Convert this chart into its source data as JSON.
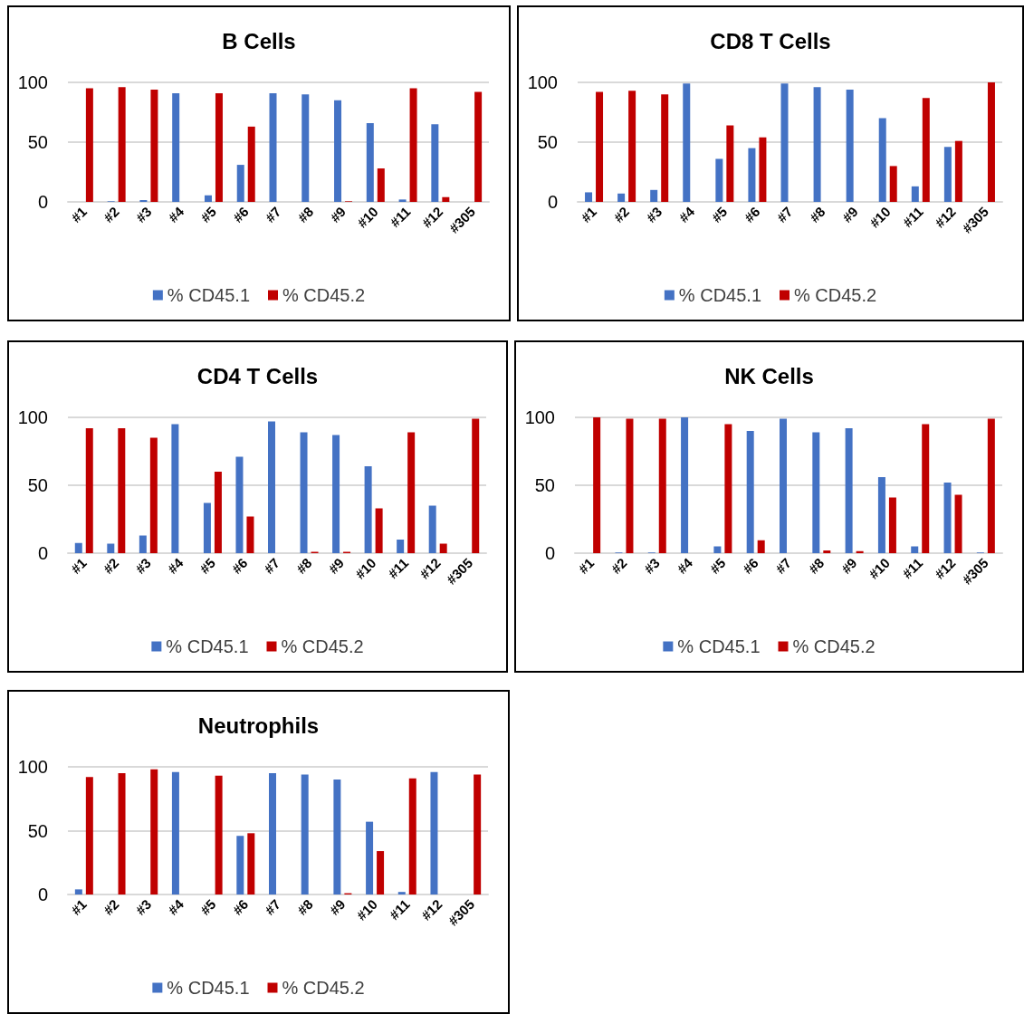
{
  "chart_data": [
    {
      "type": "bar",
      "title": "B Cells",
      "categories": [
        "#1",
        "#2",
        "#3",
        "#4",
        "#5",
        "#6",
        "#7",
        "#8",
        "#9",
        "#10",
        "#11",
        "#12",
        "#305"
      ],
      "ylim": [
        0,
        100
      ],
      "yticks": [
        0,
        50,
        100
      ],
      "grid": "y",
      "legend": "bottom",
      "series": [
        {
          "name": "% CD45.1",
          "color": "#4472c4",
          "values": [
            0,
            0.5,
            1.5,
            91,
            5.5,
            31,
            91,
            90,
            85,
            66,
            2,
            65,
            0
          ]
        },
        {
          "name": "% CD45.2",
          "color": "#c00000",
          "values": [
            95,
            96,
            94,
            0,
            91,
            63,
            0,
            0,
            0.5,
            28,
            95,
            4,
            92
          ]
        }
      ]
    },
    {
      "type": "bar",
      "title": "CD8 T Cells",
      "categories": [
        "#1",
        "#2",
        "#3",
        "#4",
        "#5",
        "#6",
        "#7",
        "#8",
        "#9",
        "#10",
        "#11",
        "#12",
        "#305"
      ],
      "ylim": [
        0,
        100
      ],
      "yticks": [
        0,
        50,
        100
      ],
      "grid": "y",
      "legend": "bottom",
      "series": [
        {
          "name": "% CD45.1",
          "color": "#4472c4",
          "values": [
            8,
            7,
            10,
            99,
            36,
            45,
            99,
            96,
            94,
            70,
            13,
            46,
            0
          ]
        },
        {
          "name": "% CD45.2",
          "color": "#c00000",
          "values": [
            92,
            93,
            90,
            0,
            64,
            54,
            0,
            0,
            0,
            30,
            87,
            51,
            100
          ]
        }
      ]
    },
    {
      "type": "bar",
      "title": "CD4 T Cells",
      "categories": [
        "#1",
        "#2",
        "#3",
        "#4",
        "#5",
        "#6",
        "#7",
        "#8",
        "#9",
        "#10",
        "#11",
        "#12",
        "#305"
      ],
      "ylim": [
        0,
        100
      ],
      "yticks": [
        0,
        50,
        100
      ],
      "grid": "y",
      "legend": "bottom",
      "series": [
        {
          "name": "% CD45.1",
          "color": "#4472c4",
          "values": [
            7.5,
            7,
            13,
            95,
            37,
            71,
            97,
            89,
            87,
            64,
            10,
            35,
            0
          ]
        },
        {
          "name": "% CD45.2",
          "color": "#c00000",
          "values": [
            92,
            92,
            85,
            0,
            60,
            27,
            0,
            1,
            1,
            33,
            89,
            7,
            99
          ]
        }
      ]
    },
    {
      "type": "bar",
      "title": "NK Cells",
      "categories": [
        "#1",
        "#2",
        "#3",
        "#4",
        "#5",
        "#6",
        "#7",
        "#8",
        "#9",
        "#10",
        "#11",
        "#12",
        "#305"
      ],
      "ylim": [
        0,
        100
      ],
      "yticks": [
        0,
        50,
        100
      ],
      "grid": "y",
      "legend": "bottom",
      "series": [
        {
          "name": "% CD45.1",
          "color": "#4472c4",
          "values": [
            0,
            0.5,
            0.5,
            100,
            5,
            90,
            99,
            89,
            92,
            56,
            5,
            52,
            0.5
          ]
        },
        {
          "name": "% CD45.2",
          "color": "#c00000",
          "values": [
            100,
            99,
            99,
            0,
            95,
            9.5,
            0,
            2,
            1.5,
            41,
            95,
            43,
            99
          ]
        }
      ]
    },
    {
      "type": "bar",
      "title": "Neutrophils",
      "categories": [
        "#1",
        "#2",
        "#3",
        "#4",
        "#5",
        "#6",
        "#7",
        "#8",
        "#9",
        "#10",
        "#11",
        "#12",
        "#305"
      ],
      "ylim": [
        0,
        100
      ],
      "yticks": [
        0,
        50,
        100
      ],
      "grid": "y",
      "legend": "bottom",
      "series": [
        {
          "name": "% CD45.1",
          "color": "#4472c4",
          "values": [
            4,
            0,
            0,
            96,
            0,
            46,
            95,
            94,
            90,
            57,
            2,
            96,
            0
          ]
        },
        {
          "name": "% CD45.2",
          "color": "#c00000",
          "values": [
            92,
            95,
            98,
            0,
            93,
            48,
            0,
            0,
            1,
            34,
            91,
            0,
            94
          ]
        }
      ]
    }
  ]
}
